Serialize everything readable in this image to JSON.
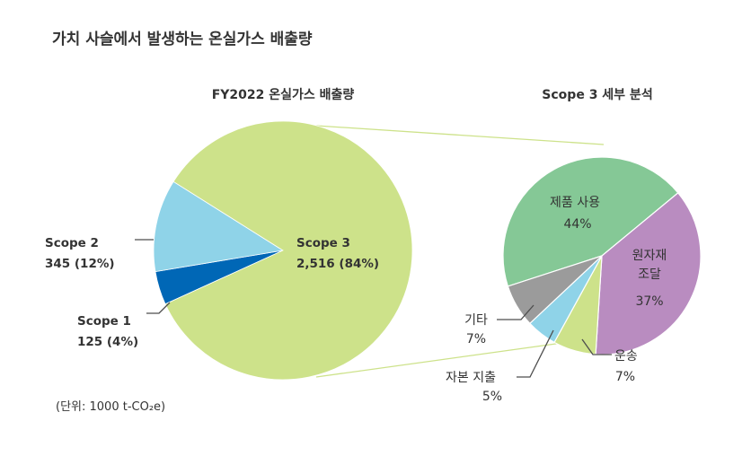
{
  "page_title": "가치 사슬에서 발생하는 온실가스 배출량",
  "unit_note": "(단위: 1000 t-CO₂e)",
  "chart_data": [
    {
      "type": "pie",
      "title": "FY2022 온실가스 배출량",
      "slices": [
        {
          "name": "Scope 1",
          "value": 125,
          "value_text": "125 (4%)",
          "percent": 4,
          "color": "#0067b6"
        },
        {
          "name": "Scope 2",
          "value": 345,
          "value_text": "345 (12%)",
          "percent": 12,
          "color": "#8fd3e8"
        },
        {
          "name": "Scope 3",
          "value": 2516,
          "value_text": "2,516 (84%)",
          "percent": 84,
          "color": "#cde28a"
        }
      ]
    },
    {
      "type": "pie",
      "title": "Scope 3 세부 분석",
      "slices": [
        {
          "name": "제품 사용",
          "percent": 44,
          "percent_text": "44%",
          "color": "#85c896"
        },
        {
          "name": "원자재 조달",
          "name_lines": [
            "원자재",
            "조달"
          ],
          "percent": 37,
          "percent_text": "37%",
          "color": "#b98cc0"
        },
        {
          "name": "운송",
          "percent": 7,
          "percent_text": "7%",
          "color": "#cde28a"
        },
        {
          "name": "자본 지출",
          "percent": 5,
          "percent_text": "5%",
          "color": "#8fd3e8"
        },
        {
          "name": "기타",
          "percent": 7,
          "percent_text": "7%",
          "color": "#9b9b9b"
        }
      ]
    }
  ],
  "colors": {
    "connector": "#cde28a",
    "leader": "#4d4d4d",
    "slice_border": "#ffffff"
  }
}
